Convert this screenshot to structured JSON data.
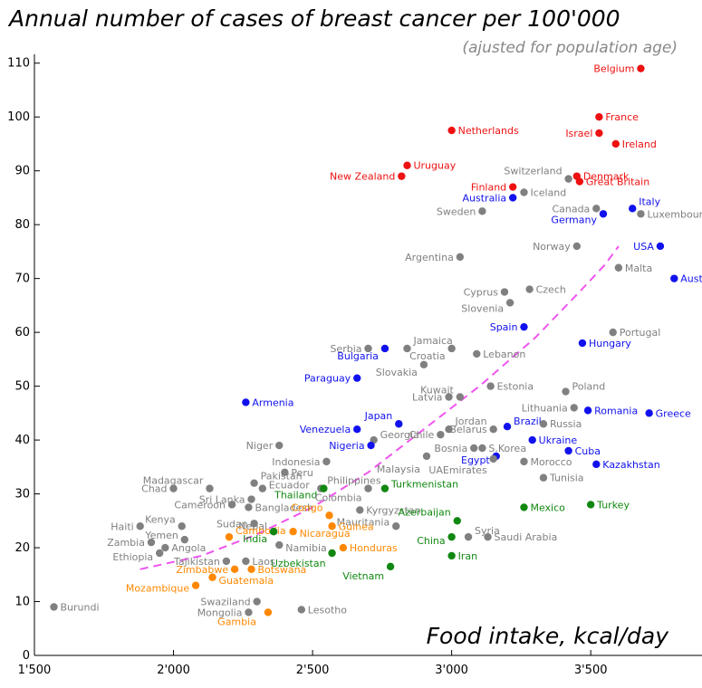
{
  "chart_data": {
    "type": "scatter",
    "title": "Annual number of cases of breast cancer per 100'000",
    "subtitle": "(ajusted for population age)",
    "xlabel": "Food intake, kcal/day",
    "ylabel": "",
    "xlim": [
      1500,
      3900
    ],
    "ylim": [
      0,
      115
    ],
    "x_ticks": [
      1500,
      2000,
      2500,
      3000,
      3500
    ],
    "x_tick_labels": [
      "1'500",
      "2'000",
      "2'500",
      "3'000",
      "3'500"
    ],
    "y_ticks": [
      0,
      10,
      20,
      30,
      40,
      50,
      60,
      70,
      80,
      90,
      100,
      110
    ],
    "y_tick_labels": [
      "0",
      "10",
      "20",
      "30",
      "40",
      "50",
      "60",
      "70",
      "80",
      "90",
      "100",
      "110"
    ],
    "grid": false,
    "colors": {
      "red": "#ee1111",
      "blue": "#1111ee",
      "gray": "#808080",
      "green": "#118811",
      "orange": "#ff8800",
      "trend": "#ee55ee"
    },
    "points": [
      {
        "name": "Belgium",
        "x": 3680,
        "y": 109,
        "c": "red",
        "a": "l"
      },
      {
        "name": "France",
        "x": 3530,
        "y": 100,
        "c": "red",
        "a": "r"
      },
      {
        "name": "Israel",
        "x": 3530,
        "y": 97,
        "c": "red",
        "a": "l"
      },
      {
        "name": "Ireland",
        "x": 3590,
        "y": 95,
        "c": "red",
        "a": "r"
      },
      {
        "name": "Netherlands",
        "x": 3000,
        "y": 97.5,
        "c": "red",
        "a": "r"
      },
      {
        "name": "Uruguay",
        "x": 2840,
        "y": 91,
        "c": "red",
        "a": "r"
      },
      {
        "name": "New Zealand",
        "x": 2820,
        "y": 89,
        "c": "red",
        "a": "l"
      },
      {
        "name": "Denmark",
        "x": 3450,
        "y": 89,
        "c": "red",
        "a": "r"
      },
      {
        "name": "Great Britain",
        "x": 3460,
        "y": 88,
        "c": "red",
        "a": "r"
      },
      {
        "name": "Finland",
        "x": 3220,
        "y": 87,
        "c": "red",
        "a": "l"
      },
      {
        "name": "Switzerland",
        "x": 3420,
        "y": 88.5,
        "c": "gray",
        "a": "l",
        "dy": -9
      },
      {
        "name": "Iceland",
        "x": 3260,
        "y": 86,
        "c": "gray",
        "a": "r"
      },
      {
        "name": "Australia",
        "x": 3220,
        "y": 85,
        "c": "blue",
        "a": "l"
      },
      {
        "name": "Canada",
        "x": 3520,
        "y": 83,
        "c": "gray",
        "a": "l"
      },
      {
        "name": "Italy",
        "x": 3650,
        "y": 83,
        "c": "blue",
        "a": "r",
        "dy": -8
      },
      {
        "name": "Germany",
        "x": 3545,
        "y": 82,
        "c": "blue",
        "a": "l",
        "dy": 6
      },
      {
        "name": "Luxembourg",
        "x": 3680,
        "y": 82,
        "c": "gray",
        "a": "r"
      },
      {
        "name": "Sweden",
        "x": 3110,
        "y": 82.5,
        "c": "gray",
        "a": "l"
      },
      {
        "name": "Norway",
        "x": 3450,
        "y": 76,
        "c": "gray",
        "a": "l"
      },
      {
        "name": "USA",
        "x": 3750,
        "y": 76,
        "c": "blue",
        "a": "l"
      },
      {
        "name": "Argentina",
        "x": 3030,
        "y": 74,
        "c": "gray",
        "a": "l"
      },
      {
        "name": "Malta",
        "x": 3600,
        "y": 72,
        "c": "gray",
        "a": "r"
      },
      {
        "name": "Austria",
        "x": 3800,
        "y": 70,
        "c": "blue",
        "a": "r"
      },
      {
        "name": "Czech",
        "x": 3280,
        "y": 68,
        "c": "gray",
        "a": "r"
      },
      {
        "name": "Cyprus",
        "x": 3190,
        "y": 67.5,
        "c": "gray",
        "a": "l"
      },
      {
        "name": "Slovenia",
        "x": 3210,
        "y": 65.5,
        "c": "gray",
        "a": "l",
        "dy": 6
      },
      {
        "name": "Spain",
        "x": 3260,
        "y": 61,
        "c": "blue",
        "a": "l"
      },
      {
        "name": "Portugal",
        "x": 3580,
        "y": 60,
        "c": "gray",
        "a": "r"
      },
      {
        "name": "Hungary",
        "x": 3470,
        "y": 58,
        "c": "blue",
        "a": "r"
      },
      {
        "name": "Jamaica",
        "x": 2840,
        "y": 57,
        "c": "gray",
        "a": "r",
        "dy": -9
      },
      {
        "name": "Serbia",
        "x": 2700,
        "y": 57,
        "c": "gray",
        "a": "l"
      },
      {
        "name": "Bulgaria",
        "x": 2760,
        "y": 57,
        "c": "blue",
        "a": "l",
        "dy": 8
      },
      {
        "name": "Lebanon",
        "x": 3090,
        "y": 56,
        "c": "gray",
        "a": "r"
      },
      {
        "name": "Croatia",
        "x": 3000,
        "y": 57,
        "c": "gray",
        "a": "l",
        "dy": 8
      },
      {
        "name": "Slovakia",
        "x": 2900,
        "y": 54,
        "c": "gray",
        "a": "l",
        "dy": 8
      },
      {
        "name": "Paraguay",
        "x": 2660,
        "y": 51.5,
        "c": "blue",
        "a": "l"
      },
      {
        "name": "Poland",
        "x": 3410,
        "y": 49,
        "c": "gray",
        "a": "r",
        "dy": -6
      },
      {
        "name": "Estonia",
        "x": 3140,
        "y": 50,
        "c": "gray",
        "a": "r"
      },
      {
        "name": "Kuwait",
        "x": 3030,
        "y": 48,
        "c": "gray",
        "a": "l",
        "dy": -8
      },
      {
        "name": "Latvia",
        "x": 2990,
        "y": 48,
        "c": "gray",
        "a": "l"
      },
      {
        "name": "Lithuania",
        "x": 3440,
        "y": 46,
        "c": "gray",
        "a": "l"
      },
      {
        "name": "Romania",
        "x": 3490,
        "y": 45.5,
        "c": "blue",
        "a": "r"
      },
      {
        "name": "Greece",
        "x": 3710,
        "y": 45,
        "c": "blue",
        "a": "r"
      },
      {
        "name": "Armenia",
        "x": 2260,
        "y": 47,
        "c": "blue",
        "a": "r"
      },
      {
        "name": "Japan",
        "x": 2810,
        "y": 43,
        "c": "blue",
        "a": "l",
        "dy": -9
      },
      {
        "name": "Venezuela",
        "x": 2660,
        "y": 42,
        "c": "blue",
        "a": "l"
      },
      {
        "name": "Jordan",
        "x": 2990,
        "y": 42,
        "c": "gray",
        "a": "r",
        "dy": -9
      },
      {
        "name": "Brazil",
        "x": 3200,
        "y": 42.5,
        "c": "blue",
        "a": "r",
        "dy": -6
      },
      {
        "name": "Russia",
        "x": 3330,
        "y": 43,
        "c": "gray",
        "a": "r"
      },
      {
        "name": "Belarus",
        "x": 3150,
        "y": 42,
        "c": "gray",
        "a": "l"
      },
      {
        "name": "Chile",
        "x": 2960,
        "y": 41,
        "c": "gray",
        "a": "l"
      },
      {
        "name": "Georgia",
        "x": 2720,
        "y": 40,
        "c": "gray",
        "a": "r",
        "dy": -6
      },
      {
        "name": "Ukraine",
        "x": 3290,
        "y": 40,
        "c": "blue",
        "a": "r"
      },
      {
        "name": "Niger",
        "x": 2380,
        "y": 39,
        "c": "gray",
        "a": "l"
      },
      {
        "name": "Nigeria",
        "x": 2710,
        "y": 39,
        "c": "blue",
        "a": "l"
      },
      {
        "name": "Bosnia",
        "x": 3080,
        "y": 38.5,
        "c": "gray",
        "a": "l"
      },
      {
        "name": "S.Korea",
        "x": 3110,
        "y": 38.5,
        "c": "gray",
        "a": "r"
      },
      {
        "name": "Cuba",
        "x": 3420,
        "y": 38,
        "c": "blue",
        "a": "r"
      },
      {
        "name": "Egypt",
        "x": 3160,
        "y": 37,
        "c": "blue",
        "a": "l",
        "dy": 4
      },
      {
        "name": "Indonesia",
        "x": 2550,
        "y": 36,
        "c": "gray",
        "a": "l"
      },
      {
        "name": "Morocco",
        "x": 3260,
        "y": 36,
        "c": "gray",
        "a": "r"
      },
      {
        "name": "Malaysia",
        "x": 2910,
        "y": 37,
        "c": "gray",
        "a": "l",
        "dy": 14
      },
      {
        "name": "Kazakhstan",
        "x": 3520,
        "y": 35.5,
        "c": "blue",
        "a": "r"
      },
      {
        "name": "UAEmirates",
        "x": 3150,
        "y": 36.5,
        "c": "gray",
        "a": "l",
        "dy": 12
      },
      {
        "name": "Pakistan",
        "x": 2290,
        "y": 32,
        "c": "gray",
        "a": "r",
        "dy": -8
      },
      {
        "name": "Peru",
        "x": 2400,
        "y": 34,
        "c": "gray",
        "a": "r"
      },
      {
        "name": "Tunisia",
        "x": 3330,
        "y": 33,
        "c": "gray",
        "a": "r"
      },
      {
        "name": "Madagascar",
        "x": 2130,
        "y": 31,
        "c": "gray",
        "a": "l",
        "dy": -9
      },
      {
        "name": "Ecuador",
        "x": 2320,
        "y": 31,
        "c": "gray",
        "a": "r",
        "dy": -4
      },
      {
        "name": "Philippines",
        "x": 2530,
        "y": 31,
        "c": "gray",
        "a": "r",
        "dy": -9
      },
      {
        "name": "Chad",
        "x": 2000,
        "y": 31,
        "c": "gray",
        "a": "l"
      },
      {
        "name": "Thailand",
        "x": 2540,
        "y": 31,
        "c": "green",
        "a": "l",
        "dy": 7
      },
      {
        "name": "Turkmenistan",
        "x": 2760,
        "y": 31,
        "c": "green",
        "a": "r",
        "dy": -5
      },
      {
        "name": "Colombia",
        "x": 2700,
        "y": 31,
        "c": "gray",
        "a": "l",
        "dy": 10
      },
      {
        "name": "Sri Lanka",
        "x": 2280,
        "y": 29,
        "c": "gray",
        "a": "l"
      },
      {
        "name": "Bangladesh",
        "x": 2270,
        "y": 27.5,
        "c": "gray",
        "a": "r"
      },
      {
        "name": "Cameroon",
        "x": 2210,
        "y": 28,
        "c": "gray",
        "a": "l"
      },
      {
        "name": "Kyrgyzstan",
        "x": 2670,
        "y": 27,
        "c": "gray",
        "a": "r"
      },
      {
        "name": "Mexico",
        "x": 3260,
        "y": 27.5,
        "c": "green",
        "a": "r"
      },
      {
        "name": "Turkey",
        "x": 3500,
        "y": 28,
        "c": "green",
        "a": "r"
      },
      {
        "name": "Congo",
        "x": 2560,
        "y": 26,
        "c": "orange",
        "a": "l",
        "dy": -9
      },
      {
        "name": "Azerbaijan",
        "x": 3020,
        "y": 25,
        "c": "green",
        "a": "l",
        "dy": -10
      },
      {
        "name": "Kenya",
        "x": 2030,
        "y": 24,
        "c": "gray",
        "a": "l",
        "dy": -8
      },
      {
        "name": "Sudan",
        "x": 2290,
        "y": 24.5,
        "c": "gray",
        "a": "l"
      },
      {
        "name": "Mauritania",
        "x": 2800,
        "y": 24,
        "c": "gray",
        "a": "l",
        "dy": -5
      },
      {
        "name": "Syria",
        "x": 3060,
        "y": 22,
        "c": "gray",
        "a": "r",
        "dy": -7
      },
      {
        "name": "Guinea",
        "x": 2570,
        "y": 24,
        "c": "orange",
        "a": "r"
      },
      {
        "name": "Haiti",
        "x": 1880,
        "y": 24,
        "c": "gray",
        "a": "l"
      },
      {
        "name": "Nepal",
        "x": 2360,
        "y": 23,
        "c": "gray",
        "a": "l",
        "dy": -6
      },
      {
        "name": "Cambodia",
        "x": 2200,
        "y": 22,
        "c": "orange",
        "a": "r",
        "dy": -7
      },
      {
        "name": "India",
        "x": 2360,
        "y": 23,
        "c": "green",
        "a": "l",
        "dy": 8
      },
      {
        "name": "Nicaragua",
        "x": 2430,
        "y": 23,
        "c": "orange",
        "a": "r",
        "dy": 2
      },
      {
        "name": "Yemen",
        "x": 2040,
        "y": 21.5,
        "c": "gray",
        "a": "l",
        "dy": -5
      },
      {
        "name": "Saudi Arabia",
        "x": 3130,
        "y": 22,
        "c": "gray",
        "a": "r"
      },
      {
        "name": "China",
        "x": 3000,
        "y": 22,
        "c": "green",
        "a": "l",
        "dy": 4
      },
      {
        "name": "Zambia",
        "x": 1920,
        "y": 21,
        "c": "gray",
        "a": "l"
      },
      {
        "name": "Angola",
        "x": 1970,
        "y": 20,
        "c": "gray",
        "a": "r"
      },
      {
        "name": "Namibia",
        "x": 2380,
        "y": 20.5,
        "c": "gray",
        "a": "r",
        "dy": 3
      },
      {
        "name": "Honduras",
        "x": 2610,
        "y": 20,
        "c": "orange",
        "a": "r"
      },
      {
        "name": "Ethiopia",
        "x": 1950,
        "y": 19,
        "c": "gray",
        "a": "l",
        "dy": 4
      },
      {
        "name": "Uzbekistan",
        "x": 2570,
        "y": 19,
        "c": "green",
        "a": "l",
        "dy": 11
      },
      {
        "name": "Iran",
        "x": 3000,
        "y": 18.5,
        "c": "green",
        "a": "r"
      },
      {
        "name": "Tajikistan",
        "x": 2190,
        "y": 17.5,
        "c": "gray",
        "a": "l"
      },
      {
        "name": "Laos",
        "x": 2260,
        "y": 17.5,
        "c": "gray",
        "a": "r"
      },
      {
        "name": "Zimbabwe",
        "x": 2220,
        "y": 16,
        "c": "orange",
        "a": "l"
      },
      {
        "name": "Botswana",
        "x": 2280,
        "y": 16,
        "c": "orange",
        "a": "r"
      },
      {
        "name": "Vietnam",
        "x": 2780,
        "y": 16.5,
        "c": "green",
        "a": "l",
        "dy": 10
      },
      {
        "name": "Guatemala",
        "x": 2140,
        "y": 14.5,
        "c": "orange",
        "a": "r",
        "dy": 3
      },
      {
        "name": "Mozambique",
        "x": 2080,
        "y": 13,
        "c": "orange",
        "a": "l",
        "dy": 3
      },
      {
        "name": "Swaziland",
        "x": 2300,
        "y": 10,
        "c": "gray",
        "a": "l"
      },
      {
        "name": "Burundi",
        "x": 1570,
        "y": 9,
        "c": "gray",
        "a": "r"
      },
      {
        "name": "Mongolia",
        "x": 2270,
        "y": 8,
        "c": "gray",
        "a": "l"
      },
      {
        "name": "Lesotho",
        "x": 2460,
        "y": 8.5,
        "c": "gray",
        "a": "r"
      },
      {
        "name": "Gambia",
        "x": 2340,
        "y": 8,
        "c": "orange",
        "a": "l",
        "dy": 10,
        "dx": -6
      }
    ],
    "trend_line": [
      {
        "x": 1880,
        "y": 16
      },
      {
        "x": 2100,
        "y": 18.5
      },
      {
        "x": 2300,
        "y": 22.5
      },
      {
        "x": 2500,
        "y": 27.5
      },
      {
        "x": 2700,
        "y": 34
      },
      {
        "x": 2900,
        "y": 42
      },
      {
        "x": 3100,
        "y": 50
      },
      {
        "x": 3300,
        "y": 59
      },
      {
        "x": 3450,
        "y": 67
      },
      {
        "x": 3550,
        "y": 72.5
      },
      {
        "x": 3600,
        "y": 76
      }
    ]
  }
}
